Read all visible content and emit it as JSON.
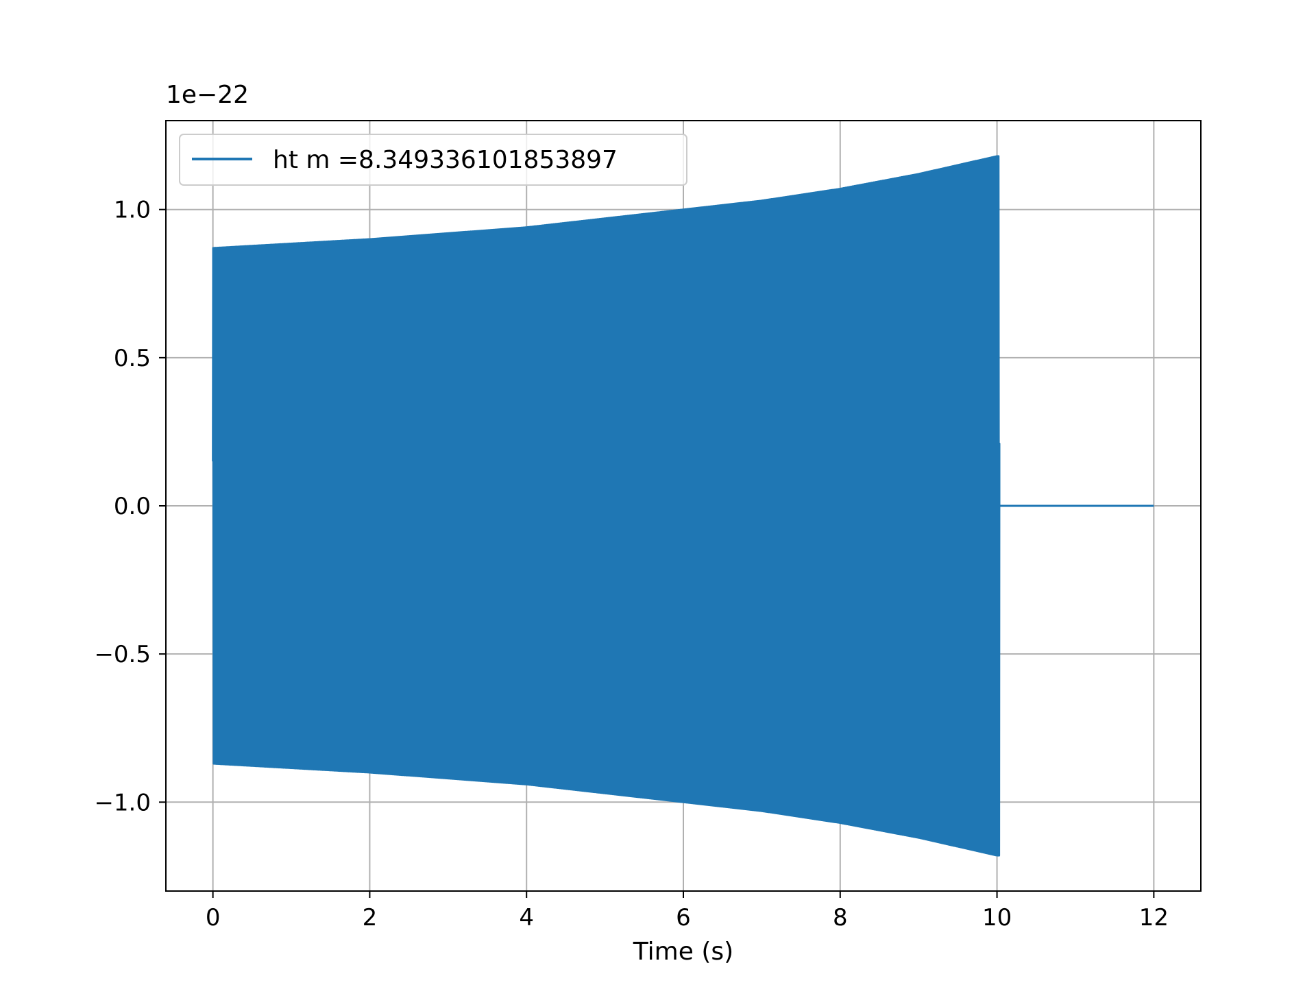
{
  "chart_data": {
    "type": "line",
    "title": "",
    "xlabel": "Time (s)",
    "ylabel": "",
    "y_exponent_label": "1e−22",
    "xlim": [
      -0.6,
      12.6
    ],
    "ylim": [
      -1.3,
      1.3
    ],
    "grid": true,
    "legend_position": "upper-left",
    "x_ticks": [
      0,
      2,
      4,
      6,
      8,
      10,
      12
    ],
    "x_tick_labels": [
      "0",
      "2",
      "4",
      "6",
      "8",
      "10",
      "12"
    ],
    "y_ticks": [
      1.0,
      0.5,
      0.0,
      -0.5,
      -1.0
    ],
    "y_tick_labels": [
      "1.0",
      "0.5",
      "0.0",
      "−0.5",
      "−1.0"
    ],
    "series": [
      {
        "name": "ht m =8.349336101853897",
        "color": "#1f77b4",
        "description_kind": "chirp",
        "t_start": 0,
        "t_merge": 10.03,
        "t_end": 12,
        "envelope_t": [
          0,
          1,
          2,
          3,
          4,
          5,
          6,
          7,
          8,
          9,
          10,
          10.03
        ],
        "envelope_amp": [
          0.87,
          0.885,
          0.9,
          0.92,
          0.94,
          0.97,
          1.0,
          1.03,
          1.07,
          1.12,
          1.18,
          1.18
        ],
        "post_merge_value": 0.0
      }
    ]
  }
}
